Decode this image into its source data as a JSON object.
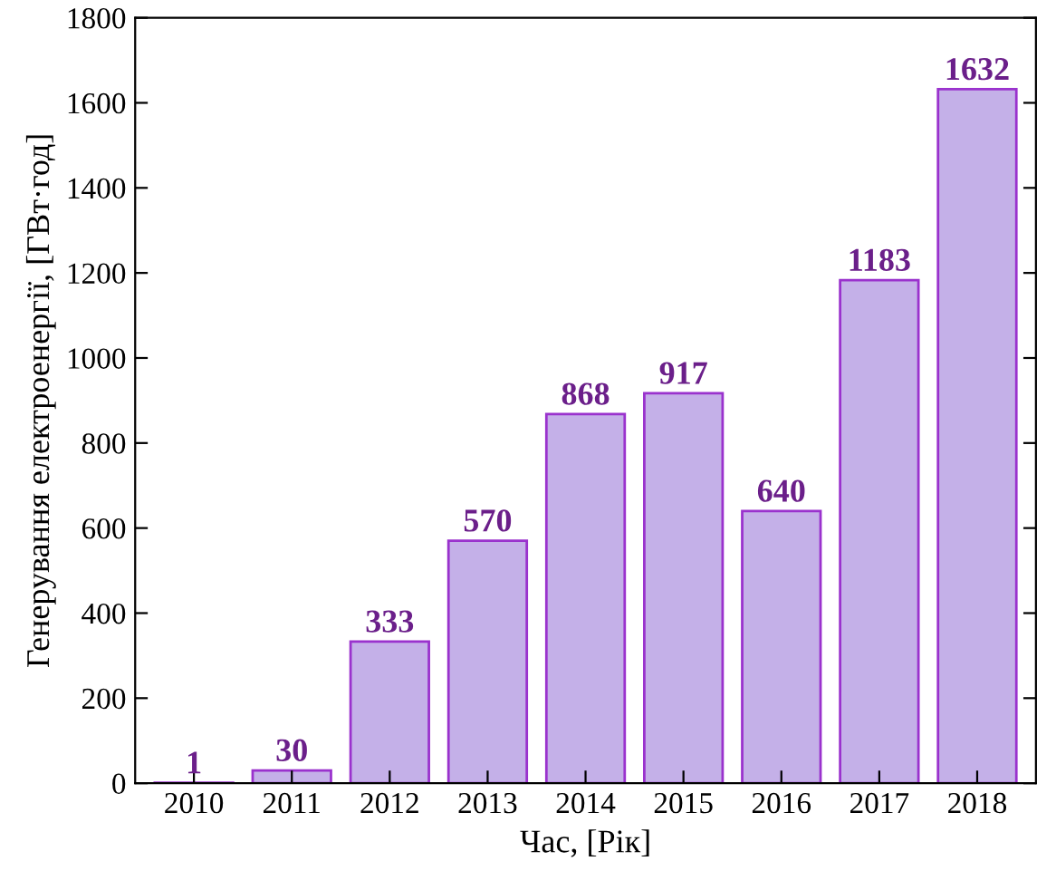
{
  "chart_data": {
    "type": "bar",
    "xlabel": "Час, [Рік]",
    "ylabel": "Генерування електроенергії, [ГВт·год]",
    "categories": [
      "2010",
      "2011",
      "2012",
      "2013",
      "2014",
      "2015",
      "2016",
      "2017",
      "2018"
    ],
    "values": [
      1,
      30,
      333,
      570,
      868,
      917,
      640,
      1183,
      1632
    ],
    "color": "#c4b0e8",
    "ylim": [
      0,
      1800
    ],
    "yticks": [
      0,
      200,
      400,
      600,
      800,
      1000,
      1200,
      1400,
      1600,
      1800
    ],
    "data_labels": true,
    "grid": false,
    "legend": false
  }
}
